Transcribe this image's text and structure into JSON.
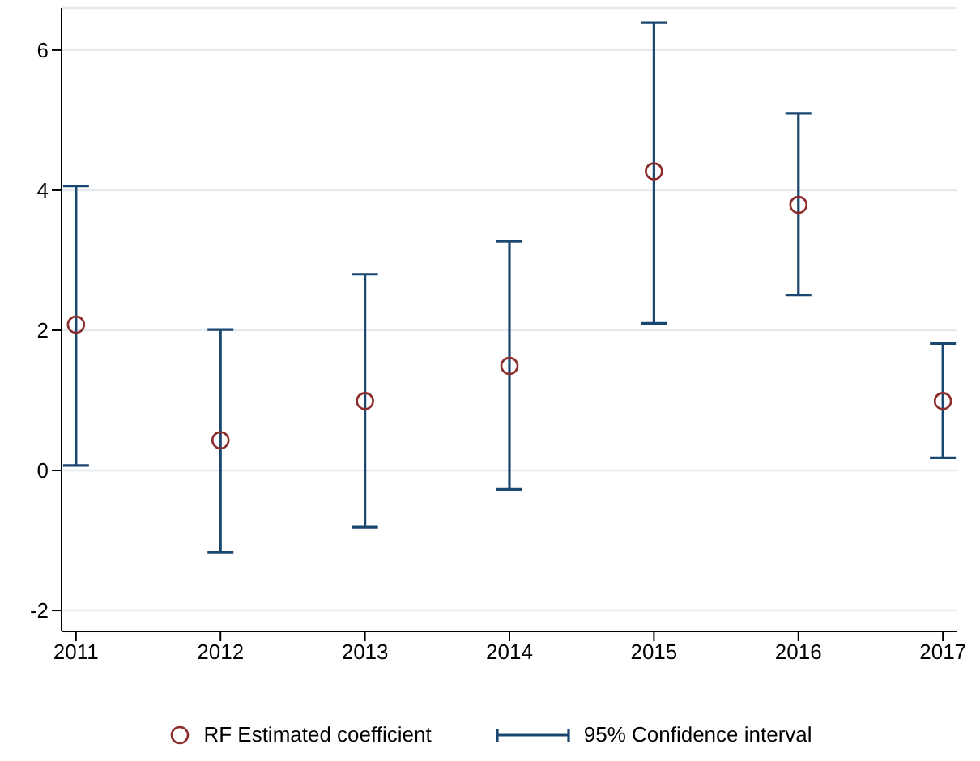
{
  "chart_data": {
    "type": "scatter",
    "x": [
      2011,
      2012,
      2013,
      2014,
      2015,
      2016,
      2017
    ],
    "series": [
      {
        "name": "RF Estimated coefficient",
        "color": "#8b2d2d",
        "values": [
          2.08,
          0.43,
          0.99,
          1.49,
          4.27,
          3.79,
          0.99
        ],
        "errors": [
          [
            0.07,
            4.06
          ],
          [
            -1.17,
            2.01
          ],
          [
            -0.81,
            2.8
          ],
          [
            -0.27,
            3.27
          ],
          [
            2.1,
            6.39
          ],
          [
            2.5,
            5.1
          ],
          [
            0.18,
            1.81
          ]
        ]
      }
    ],
    "annotations": [
      "95% Confidence interval"
    ],
    "xlim": [
      2010.9,
      2017.1
    ],
    "xticks": [
      2011,
      2012,
      2013,
      2014,
      2015,
      2016,
      2017
    ],
    "ylim": [
      -2.3,
      6.6
    ],
    "yticks": [
      -2,
      0,
      2,
      4,
      6
    ],
    "grid": "y",
    "legend": "bottom",
    "marker": "circle"
  }
}
